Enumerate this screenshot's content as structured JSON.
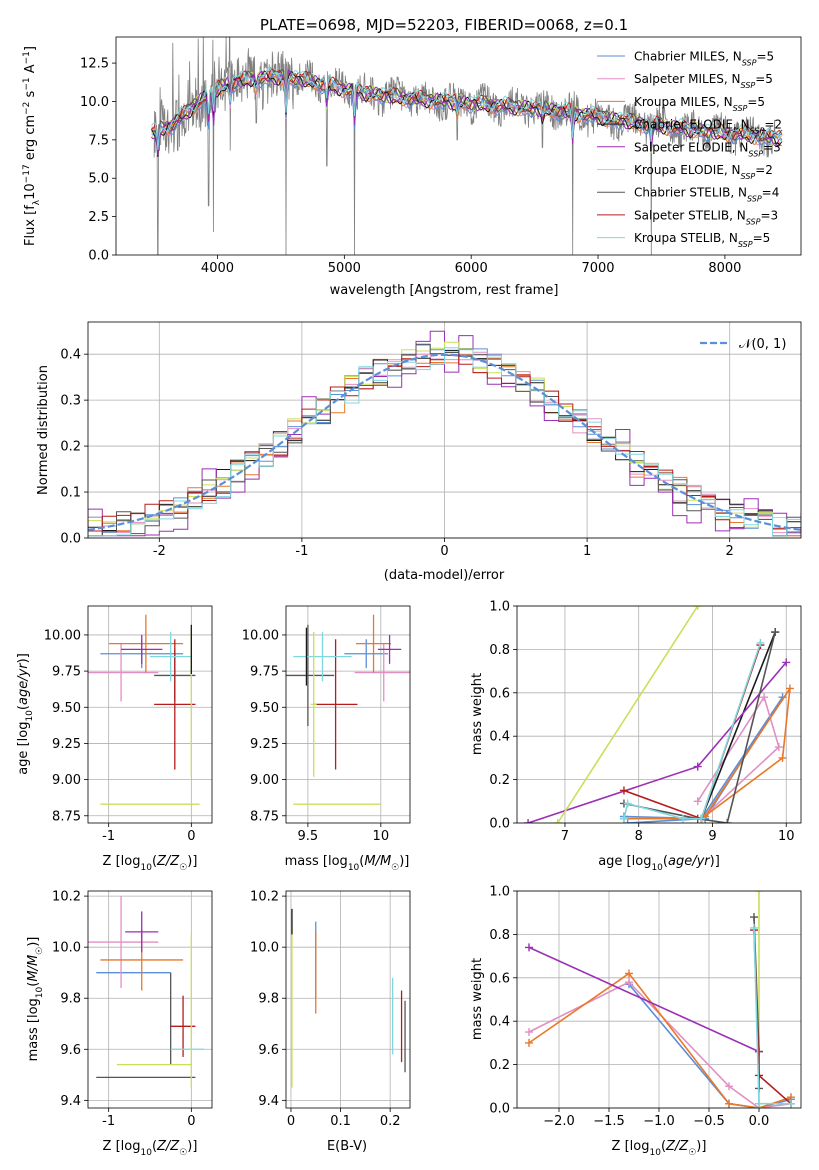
{
  "colors": {
    "Chabrier MILES": "#5b8fd9",
    "Salpeter MILES": "#e28fc3",
    "Kroupa MILES": "#e8782a",
    "Chabrier ELODIE": "#1a1a1a",
    "Salpeter ELODIE": "#9b2fb5",
    "Kroupa ELODIE": "#c8e05a",
    "Chabrier STELIB": "#555555",
    "Salpeter STELIB": "#b51d1d",
    "Kroupa STELIB": "#7fd8df",
    "data": "#808080",
    "gaussian": "#5b8fd9",
    "grid": "#b0b0b0"
  },
  "chart_data": [
    {
      "id": "spectrum",
      "type": "line",
      "title": "PLATE=0698, MJD=52203, FIBERID=0068, z=0.1",
      "xlabel": "wavelength [Angstrom, rest frame]",
      "ylabel": "Flux [f",
      "xlim": [
        3200,
        8600
      ],
      "ylim": [
        0,
        14.2
      ],
      "xticks": [
        4000,
        5000,
        6000,
        7000,
        8000
      ],
      "yticks": [
        0.0,
        2.5,
        5.0,
        7.5,
        10.0,
        12.5
      ],
      "grid": false,
      "legend_placement": "upper right",
      "series": [
        {
          "name": "Chabrier MILES, N",
          "nssp": "=5"
        },
        {
          "name": "Salpeter MILES, N",
          "nssp": "=5"
        },
        {
          "name": "Kroupa MILES, N",
          "nssp": "=5"
        },
        {
          "name": "Chabrier ELODIE, N",
          "nssp": "=2"
        },
        {
          "name": "Salpeter ELODIE, N",
          "nssp": "=3"
        },
        {
          "name": "Kroupa ELODIE, N",
          "nssp": "=2"
        },
        {
          "name": "Chabrier STELIB, N",
          "nssp": "=4"
        },
        {
          "name": "Salpeter STELIB, N",
          "nssp": "=3"
        },
        {
          "name": "Kroupa STELIB, N",
          "nssp": "=5"
        }
      ],
      "continuum": {
        "x": [
          3500,
          3650,
          3800,
          3950,
          4100,
          4300,
          4500,
          4700,
          4900,
          5100,
          5300,
          5500,
          5800,
          6100,
          6400,
          6700,
          7000,
          7300,
          7600,
          7900,
          8200,
          8400
        ],
        "y": [
          8.0,
          8.5,
          9.6,
          10.6,
          11.2,
          11.5,
          11.6,
          11.4,
          11.0,
          10.6,
          10.4,
          10.2,
          10.0,
          9.8,
          9.6,
          9.4,
          9.0,
          8.6,
          8.3,
          8.0,
          7.8,
          7.6
        ]
      },
      "absorption_features": [
        {
          "x": 3530,
          "depth": 0.0
        },
        {
          "x": 3930,
          "depth": 3.2
        },
        {
          "x": 3968,
          "depth": 1.5
        },
        {
          "x": 4100,
          "depth": 6.8
        },
        {
          "x": 4305,
          "depth": 8.6
        },
        {
          "x": 4540,
          "depth": 0.0
        },
        {
          "x": 4861,
          "depth": 5.8
        },
        {
          "x": 5080,
          "depth": 0.0
        },
        {
          "x": 5890,
          "depth": 7.5
        },
        {
          "x": 6563,
          "depth": 7.0
        },
        {
          "x": 6800,
          "depth": 0.0
        },
        {
          "x": 7420,
          "depth": 0.0
        }
      ]
    },
    {
      "id": "residuals",
      "type": "line",
      "xlabel": "(data-model)/error",
      "ylabel": "Normed distribution",
      "xlim": [
        -2.5,
        2.5
      ],
      "ylim": [
        0,
        0.47
      ],
      "xticks": [
        -2,
        -1,
        0,
        1,
        2
      ],
      "yticks": [
        0.0,
        0.1,
        0.2,
        0.3,
        0.4
      ],
      "grid": true,
      "legend_placement": "upper right",
      "legend": "𝒩(0, 1)",
      "gaussian": {
        "mu": 0,
        "sigma": 1
      }
    },
    {
      "id": "age_vs_Z",
      "type": "scatter",
      "xlabel": "Z [log",
      "ylabel": "age  [log",
      "xlim": [
        -1.25,
        0.25
      ],
      "ylim": [
        8.7,
        10.2
      ],
      "xticks": [
        -1,
        0
      ],
      "yticks": [
        8.75,
        9.0,
        9.25,
        9.5,
        9.75,
        10.0
      ],
      "tick_labels_y": [
        "8.75",
        "9.00",
        "9.25",
        "9.50",
        "9.75",
        "10.00"
      ],
      "grid": true,
      "points": [
        {
          "model": "Chabrier MILES",
          "x": -0.6,
          "xerr": 0.5,
          "y": 9.87,
          "yerr": 0.1
        },
        {
          "model": "Salpeter MILES",
          "x": -0.85,
          "xerr": 0.45,
          "y": 9.74,
          "yerr": 0.2
        },
        {
          "model": "Kroupa MILES",
          "x": -0.55,
          "xerr": 0.45,
          "y": 9.94,
          "yerr": 0.2
        },
        {
          "model": "Salpeter ELODIE",
          "x": -0.6,
          "xerr": 0.25,
          "y": 9.9,
          "yerr": 0.1
        },
        {
          "model": "Chabrier STELIB",
          "x": -0.2,
          "xerr": 0.25,
          "y": 9.72,
          "yerr": 0.18
        },
        {
          "model": "Salpeter STELIB",
          "x": -0.2,
          "xerr": 0.25,
          "y": 9.52,
          "yerr": 0.45
        },
        {
          "model": "Kroupa STELIB",
          "x": -0.25,
          "xerr": 0.25,
          "y": 9.85,
          "yerr": 0.17
        },
        {
          "model": "Kroupa ELODIE",
          "x": -0.5,
          "xerr": 0.6,
          "y": 8.83,
          "yerr": 0.0
        },
        {
          "model": "Kroupa ELODIE",
          "x": 0.0,
          "xerr": 0.0,
          "y": 9.52,
          "yerr": 0.5
        },
        {
          "model": "Chabrier ELODIE",
          "x": 0.0,
          "xerr": 0.0,
          "y": 9.9,
          "yerr": 0.17
        }
      ]
    },
    {
      "id": "age_vs_mass",
      "type": "scatter",
      "xlabel": "mass [log",
      "xlim": [
        9.35,
        10.2
      ],
      "ylim": [
        8.7,
        10.2
      ],
      "xticks": [
        9.5,
        10.0
      ],
      "yticks": [
        8.75,
        9.0,
        9.25,
        9.5,
        9.75,
        10.0
      ],
      "tick_labels_y": [
        "8.75",
        "9.00",
        "9.25",
        "9.50",
        "9.75",
        "10.00"
      ],
      "grid": true,
      "points": [
        {
          "model": "Chabrier MILES",
          "x": 9.9,
          "xerr": 0.15,
          "y": 9.87,
          "yerr": 0.1
        },
        {
          "model": "Salpeter MILES",
          "x": 10.02,
          "xerr": 0.2,
          "y": 9.74,
          "yerr": 0.2
        },
        {
          "model": "Kroupa MILES",
          "x": 9.95,
          "xerr": 0.12,
          "y": 9.94,
          "yerr": 0.2
        },
        {
          "model": "Salpeter ELODIE",
          "x": 10.06,
          "xerr": 0.08,
          "y": 9.9,
          "yerr": 0.1
        },
        {
          "model": "Chabrier STELIB",
          "x": 9.5,
          "xerr": 0.18,
          "y": 9.72,
          "yerr": 0.35
        },
        {
          "model": "Salpeter STELIB",
          "x": 9.69,
          "xerr": 0.15,
          "y": 9.52,
          "yerr": 0.45
        },
        {
          "model": "Kroupa STELIB",
          "x": 9.6,
          "xerr": 0.2,
          "y": 9.85,
          "yerr": 0.17
        },
        {
          "model": "Kroupa ELODIE",
          "x": 9.54,
          "xerr": 0.02,
          "y": 9.52,
          "yerr": 0.5
        },
        {
          "model": "Kroupa ELODIE",
          "x": 9.7,
          "xerr": 0.3,
          "y": 8.83,
          "yerr": 0.0
        },
        {
          "model": "Chabrier ELODIE",
          "x": 9.49,
          "xerr": 0.0,
          "y": 9.85,
          "yerr": 0.2
        }
      ]
    },
    {
      "id": "weight_vs_age",
      "type": "line",
      "xlabel": "age  [log",
      "ylabel": "mass weight",
      "xlim": [
        6.35,
        10.2
      ],
      "ylim": [
        0,
        1.0
      ],
      "xticks": [
        7,
        8,
        9,
        10
      ],
      "yticks": [
        0.0,
        0.2,
        0.4,
        0.6,
        0.8,
        1.0
      ],
      "grid": true,
      "series": [
        {
          "model": "Chabrier MILES",
          "x": [
            7.8,
            8.9,
            9.95,
            8.85,
            7.85
          ],
          "y": [
            0.03,
            0.02,
            0.58,
            0.02,
            0.0
          ]
        },
        {
          "model": "Salpeter MILES",
          "x": [
            7.8,
            8.85,
            9.9,
            9.7,
            8.8
          ],
          "y": [
            0.02,
            0.02,
            0.35,
            0.58,
            0.1
          ]
        },
        {
          "model": "Kroupa MILES",
          "x": [
            7.8,
            8.85,
            9.95,
            10.05,
            8.9
          ],
          "y": [
            0.02,
            0.02,
            0.3,
            0.62,
            0.03
          ]
        },
        {
          "model": "Chabrier ELODIE",
          "x": [
            8.85,
            9.85
          ],
          "y": [
            0.02,
            0.88
          ]
        },
        {
          "model": "Salpeter ELODIE",
          "x": [
            6.5,
            8.8,
            10.0
          ],
          "y": [
            0.0,
            0.26,
            0.74
          ]
        },
        {
          "model": "Kroupa ELODIE",
          "x": [
            6.9,
            8.8
          ],
          "y": [
            0.0,
            1.0
          ]
        },
        {
          "model": "Chabrier STELIB",
          "x": [
            7.8,
            8.8,
            9.2,
            9.85
          ],
          "y": [
            0.09,
            0.02,
            0.0,
            0.88
          ]
        },
        {
          "model": "Salpeter STELIB",
          "x": [
            7.8,
            8.85,
            9.65
          ],
          "y": [
            0.15,
            0.02,
            0.82
          ]
        },
        {
          "model": "Kroupa STELIB",
          "x": [
            7.8,
            7.85,
            8.6,
            8.85,
            9.65
          ],
          "y": [
            0.02,
            0.09,
            0.02,
            0.02,
            0.83
          ]
        }
      ]
    },
    {
      "id": "mass_vs_Z",
      "type": "scatter",
      "xlabel": "Z [log",
      "ylabel": "mass [log",
      "xlim": [
        -1.25,
        0.25
      ],
      "ylim": [
        9.37,
        10.22
      ],
      "xticks": [
        -1,
        0
      ],
      "yticks": [
        9.4,
        9.6,
        9.8,
        10.0,
        10.2
      ],
      "grid": true,
      "points": [
        {
          "model": "Chabrier MILES",
          "x": -0.7,
          "xerr": 0.45,
          "y": 9.9,
          "yerr": 0.0
        },
        {
          "model": "Salpeter MILES",
          "x": -0.85,
          "xerr": 0.45,
          "y": 10.02,
          "yerr": 0.18
        },
        {
          "model": "Kroupa MILES",
          "x": -0.6,
          "xerr": 0.5,
          "y": 9.95,
          "yerr": 0.12
        },
        {
          "model": "Salpeter ELODIE",
          "x": -0.6,
          "xerr": 0.2,
          "y": 10.06,
          "yerr": 0.08
        },
        {
          "model": "Chabrier STELIB",
          "x": -0.55,
          "xerr": 0.6,
          "y": 9.49,
          "yerr": 0.0
        },
        {
          "model": "Chabrier STELIB",
          "x": -0.25,
          "xerr": 0.0,
          "y": 9.72,
          "yerr": 0.18
        },
        {
          "model": "Salpeter STELIB",
          "x": -0.1,
          "xerr": 0.15,
          "y": 9.69,
          "yerr": 0.12
        },
        {
          "model": "Kroupa STELIB",
          "x": -0.05,
          "xerr": 0.2,
          "y": 9.6,
          "yerr": 0.0
        },
        {
          "model": "Kroupa ELODIE",
          "x": -0.45,
          "xerr": 0.45,
          "y": 9.54,
          "yerr": 0.0
        },
        {
          "model": "Kroupa ELODIE",
          "x": 0.0,
          "xerr": 0.0,
          "y": 9.75,
          "yerr": 0.3
        }
      ]
    },
    {
      "id": "mass_vs_ebv",
      "type": "scatter",
      "xlabel": "E(B-V)",
      "xlim": [
        -0.01,
        0.24
      ],
      "ylim": [
        9.37,
        10.22
      ],
      "xticks": [
        0.0,
        0.1,
        0.2
      ],
      "yticks": [
        9.4,
        9.6,
        9.8,
        10.0,
        10.2
      ],
      "grid": true,
      "points": [
        {
          "model": "Kroupa ELODIE",
          "x": 0.002,
          "y": 9.78,
          "yerr": 0.33
        },
        {
          "model": "Chabrier ELODIE",
          "x": 0.002,
          "y": 10.1,
          "yerr": 0.05
        },
        {
          "model": "Chabrier MILES",
          "x": 0.05,
          "y": 9.95,
          "yerr": 0.15
        },
        {
          "model": "Kroupa MILES",
          "x": 0.05,
          "y": 9.9,
          "yerr": 0.16
        },
        {
          "model": "Kroupa STELIB",
          "x": 0.205,
          "y": 9.73,
          "yerr": 0.15
        },
        {
          "model": "Salpeter STELIB",
          "x": 0.223,
          "y": 9.69,
          "yerr": 0.14
        },
        {
          "model": "Chabrier STELIB",
          "x": 0.23,
          "y": 9.65,
          "yerr": 0.14
        }
      ]
    },
    {
      "id": "weight_vs_Z",
      "type": "line",
      "xlabel": "Z [log",
      "ylabel": "mass weight",
      "xlim": [
        -2.42,
        0.42
      ],
      "ylim": [
        0,
        1.0
      ],
      "xticks": [
        -2.0,
        -1.5,
        -1.0,
        -0.5,
        0.0
      ],
      "tick_labels_x": [
        "−2.0",
        "−1.5",
        "−1.0",
        "−0.5",
        "0.0"
      ],
      "yticks": [
        0.0,
        0.2,
        0.4,
        0.6,
        0.8,
        1.0
      ],
      "grid": true,
      "series": [
        {
          "model": "Chabrier MILES",
          "x": [
            -1.3,
            -0.3,
            0.0,
            0.32
          ],
          "y": [
            0.57,
            0.02,
            0.0,
            0.04
          ]
        },
        {
          "model": "Salpeter MILES",
          "x": [
            -2.3,
            -1.3,
            -0.3,
            0.0,
            0.32
          ],
          "y": [
            0.35,
            0.58,
            0.1,
            0.0,
            0.02
          ]
        },
        {
          "model": "Kroupa MILES",
          "x": [
            -2.3,
            -1.3,
            -0.3,
            0.0,
            0.32
          ],
          "y": [
            0.3,
            0.62,
            0.02,
            0.0,
            0.05
          ]
        },
        {
          "model": "Salpeter ELODIE",
          "x": [
            -2.3,
            0.0
          ],
          "y": [
            0.74,
            0.26
          ]
        },
        {
          "model": "Kroupa ELODIE",
          "x": [
            0.0,
            0.0
          ],
          "y": [
            0.0,
            1.0
          ]
        },
        {
          "model": "Chabrier STELIB",
          "x": [
            -0.05,
            0.0,
            0.0
          ],
          "y": [
            0.88,
            0.26,
            0.09
          ]
        },
        {
          "model": "Salpeter STELIB",
          "x": [
            -0.05,
            0.0,
            0.32
          ],
          "y": [
            0.82,
            0.15,
            0.02
          ]
        },
        {
          "model": "Kroupa STELIB",
          "x": [
            -0.05,
            0.0,
            0.32
          ],
          "y": [
            0.83,
            0.02,
            0.02
          ]
        }
      ]
    }
  ]
}
